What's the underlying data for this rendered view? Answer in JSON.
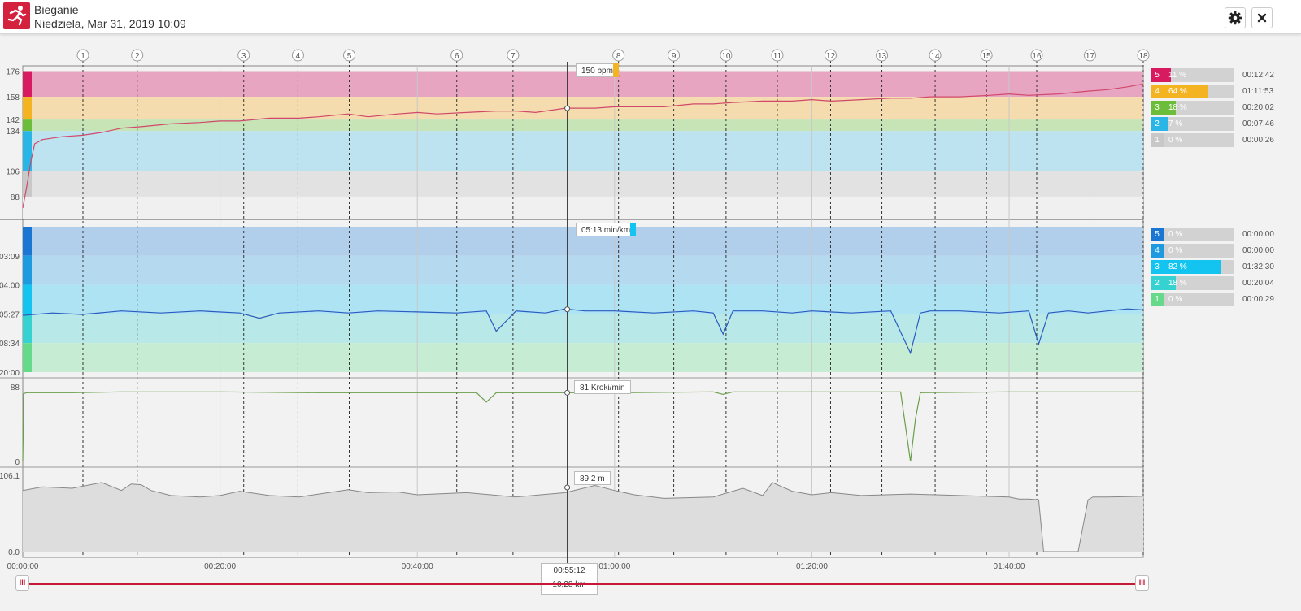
{
  "header": {
    "title": "Bieganie",
    "subtitle": "Niedziela, Mar 31, 2019 10:09",
    "icon": "running-icon",
    "settings_icon": "gear-icon",
    "close_icon": "close-icon",
    "brand_color": "#d4213d"
  },
  "laps": [
    "1",
    "2",
    "3",
    "4",
    "5",
    "6",
    "7",
    "8",
    "9",
    "10",
    "11",
    "12",
    "13",
    "14",
    "15",
    "16",
    "17",
    "18"
  ],
  "lap_times_min": [
    6.1,
    11.6,
    22.4,
    27.9,
    33.1,
    44.0,
    49.7,
    60.4,
    66.0,
    71.3,
    76.5,
    81.9,
    87.1,
    92.5,
    97.7,
    102.8,
    108.2,
    113.6
  ],
  "time_axis": {
    "ticks": [
      "00:00:00",
      "00:20:00",
      "00:40:00",
      "01:00:00",
      "01:20:00",
      "01:40:00"
    ],
    "tick_minutes": [
      0,
      20,
      40,
      60,
      80,
      100
    ],
    "max_minutes": 113.6
  },
  "cursor": {
    "time": "00:55:12",
    "distance": "10,28 km",
    "minutes": 55.2
  },
  "tooltips": {
    "hr": "150 bpm",
    "pace": "05:13 min/km",
    "cadence": "81  Kroki/min",
    "altitude": "89.2  m"
  },
  "chart_data": [
    {
      "type": "area",
      "name": "heart_rate",
      "y_ticks": [
        "176",
        "158",
        "142",
        "134",
        "106",
        "88"
      ],
      "y_tick_values": [
        176,
        158,
        142,
        134,
        106,
        88
      ],
      "ylim": [
        72,
        178
      ],
      "zones": [
        {
          "zone": "5",
          "from": 158,
          "to": 176,
          "color": "#e8a5c2",
          "bar": "#d81b60"
        },
        {
          "zone": "4",
          "from": 142,
          "to": 158,
          "color": "#f5dcae",
          "bar": "#f4b321"
        },
        {
          "zone": "3",
          "from": 134,
          "to": 142,
          "color": "#c7e4b6",
          "bar": "#6bbd3a"
        },
        {
          "zone": "2",
          "from": 106,
          "to": 134,
          "color": "#bde2f0",
          "bar": "#29b6e6"
        },
        {
          "zone": "1",
          "from": 88,
          "to": 106,
          "color": "#e2e2e2",
          "bar": "#c8c8c8"
        }
      ],
      "line_color": "#d0486a",
      "x_minutes": [
        0,
        0.4,
        0.8,
        1.2,
        2,
        4,
        6,
        8,
        10,
        12,
        15,
        18,
        20,
        22,
        25,
        28,
        30,
        33,
        35,
        38,
        40,
        42,
        45,
        48,
        50,
        52,
        55,
        58,
        60,
        62,
        65,
        68,
        70,
        72,
        75,
        78,
        80,
        82,
        85,
        88,
        90,
        92,
        95,
        98,
        100,
        102,
        105,
        108,
        110,
        112,
        113.6
      ],
      "values": [
        80,
        95,
        112,
        125,
        128,
        130,
        131,
        133,
        136,
        137,
        139,
        140,
        141,
        141,
        143,
        143,
        144,
        146,
        144,
        146,
        147,
        146,
        147,
        148,
        148,
        147,
        150,
        150,
        151,
        151,
        151,
        153,
        153,
        154,
        155,
        155,
        156,
        155,
        156,
        157,
        157,
        158,
        158,
        159,
        160,
        159,
        160,
        162,
        163,
        165,
        167
      ]
    },
    {
      "type": "line",
      "name": "pace",
      "y_ticks": [
        "03:09",
        "04:00",
        "05:27",
        "08:34",
        "20:00"
      ],
      "zones": [
        {
          "zone": "5",
          "color": "#b1cfea",
          "bar": "#1976d2"
        },
        {
          "zone": "4",
          "color": "#b5daef",
          "bar": "#1e9be0"
        },
        {
          "zone": "3",
          "color": "#aee3f4",
          "bar": "#12c4ef"
        },
        {
          "zone": "2",
          "color": "#b8e8e8",
          "bar": "#36d2d2"
        },
        {
          "zone": "1",
          "color": "#c7ecd4",
          "bar": "#66d98a"
        }
      ],
      "line_color": "#2a5bbf",
      "x_minutes": [
        0,
        3,
        6,
        10,
        14,
        18,
        22,
        24,
        26,
        30,
        33,
        36,
        40,
        44,
        47,
        48,
        50,
        53,
        55,
        57,
        60,
        64,
        68,
        70,
        71,
        72,
        75,
        78,
        80,
        84,
        88,
        90,
        91,
        92,
        95,
        99,
        102,
        103,
        104,
        106,
        108,
        110,
        112,
        113.6
      ],
      "values_min_per_km": [
        5.6,
        5.4,
        5.5,
        5.3,
        5.4,
        5.3,
        5.4,
        5.9,
        5.4,
        5.3,
        5.4,
        5.3,
        5.35,
        5.4,
        5.3,
        7.3,
        5.3,
        5.4,
        5.2,
        5.3,
        5.3,
        5.4,
        5.3,
        5.4,
        7.6,
        5.3,
        5.3,
        5.4,
        5.3,
        5.4,
        5.3,
        12.5,
        5.4,
        5.3,
        5.3,
        5.4,
        5.3,
        9.0,
        5.4,
        5.3,
        5.4,
        5.3,
        5.2,
        5.25
      ]
    },
    {
      "type": "line",
      "name": "cadence",
      "y_ticks": [
        "88",
        "0"
      ],
      "ylim": [
        0,
        88
      ],
      "line_color": "#6a9e4a",
      "x_minutes": [
        0,
        0.1,
        0.4,
        5,
        10,
        20,
        30,
        40,
        46,
        47,
        48,
        50,
        60,
        70,
        71,
        72,
        80,
        89,
        90,
        90.5,
        91,
        100,
        110,
        113.6
      ],
      "values": [
        0,
        80,
        81,
        81,
        82,
        82,
        81,
        81,
        81,
        70,
        81,
        81,
        81,
        82,
        79,
        82,
        82,
        82,
        0,
        50,
        81,
        82,
        82,
        82
      ]
    },
    {
      "type": "area",
      "name": "altitude",
      "y_ticks": [
        "106.1",
        "0.0"
      ],
      "ylim": [
        0,
        106.1
      ],
      "line_color": "#888888",
      "fill_color": "#dddddd",
      "x_minutes": [
        0,
        2,
        5,
        8,
        10,
        11,
        12,
        13,
        15,
        18,
        20,
        22,
        25,
        28,
        30,
        33,
        35,
        38,
        40,
        45,
        50,
        55,
        58,
        60,
        62,
        65,
        70,
        73,
        75,
        76,
        78,
        80,
        82,
        85,
        90,
        95,
        100,
        101,
        102,
        103,
        103.5,
        107,
        108,
        108.5,
        110,
        113.6
      ],
      "values": [
        85,
        90,
        88,
        96,
        85,
        94,
        93,
        85,
        78,
        76,
        78,
        84,
        78,
        76,
        80,
        86,
        82,
        83,
        79,
        82,
        76,
        82,
        92,
        85,
        79,
        74,
        76,
        88,
        78,
        96,
        84,
        79,
        82,
        78,
        80,
        78,
        76,
        73,
        73,
        72,
        0,
        0,
        72,
        76,
        76,
        77
      ]
    }
  ],
  "hr_legend": [
    {
      "zone": "5",
      "pct": "11 %",
      "fraction": 0.11,
      "time": "00:12:42",
      "color": "#d81b60"
    },
    {
      "zone": "4",
      "pct": "64 %",
      "fraction": 0.64,
      "time": "01:11:53",
      "color": "#f4b321"
    },
    {
      "zone": "3",
      "pct": "18 %",
      "fraction": 0.18,
      "time": "00:20:02",
      "color": "#6bbd3a"
    },
    {
      "zone": "2",
      "pct": "7 %",
      "fraction": 0.07,
      "time": "00:07:46",
      "color": "#29b6e6"
    },
    {
      "zone": "1",
      "pct": "0 %",
      "fraction": 0.0,
      "time": "00:00:26",
      "color": "#c8c8c8"
    }
  ],
  "pace_legend": [
    {
      "zone": "5",
      "pct": "0 %",
      "fraction": 0.0,
      "time": "00:00:00",
      "color": "#1976d2"
    },
    {
      "zone": "4",
      "pct": "0 %",
      "fraction": 0.0,
      "time": "00:00:00",
      "color": "#1e9be0"
    },
    {
      "zone": "3",
      "pct": "82 %",
      "fraction": 0.82,
      "time": "01:32:30",
      "color": "#12c4ef"
    },
    {
      "zone": "2",
      "pct": "18 %",
      "fraction": 0.18,
      "time": "00:20:04",
      "color": "#36d2d2"
    },
    {
      "zone": "1",
      "pct": "0 %",
      "fraction": 0.0,
      "time": "00:00:29",
      "color": "#66d98a"
    }
  ]
}
